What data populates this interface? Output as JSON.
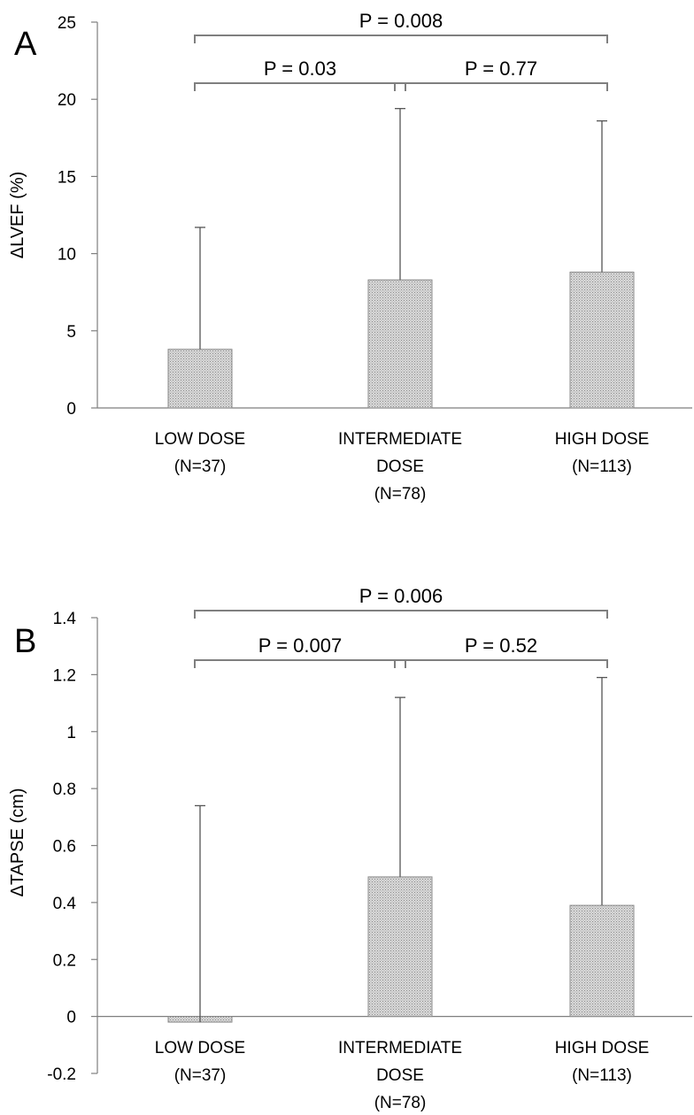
{
  "chart_data": [
    {
      "type": "bar",
      "panel_label": "A",
      "ylabel": "ΔLVEF (%)",
      "ylim": [
        0,
        25
      ],
      "yticks": [
        0,
        5,
        10,
        15,
        20,
        25
      ],
      "yticklabels": [
        "0",
        "5",
        "10",
        "15",
        "20",
        "25"
      ],
      "categories": [
        [
          "LOW DOSE",
          "(N=37)"
        ],
        [
          "INTERMEDIATE",
          "DOSE",
          "(N=78)"
        ],
        [
          "HIGH DOSE",
          "(N=113)"
        ]
      ],
      "values": [
        3.8,
        8.3,
        8.8
      ],
      "error_upper": [
        11.7,
        19.4,
        18.6
      ],
      "comparisons": [
        {
          "from": 0,
          "to": 2,
          "label": "P = 0.008",
          "level": 2
        },
        {
          "from": 0,
          "to": 1,
          "label": "P = 0.03",
          "level": 1
        },
        {
          "from": 1,
          "to": 2,
          "label": "P = 0.77",
          "level": 1
        }
      ]
    },
    {
      "type": "bar",
      "panel_label": "B",
      "ylabel": "ΔTAPSE (cm)",
      "ylim": [
        -0.2,
        1.4
      ],
      "yticks": [
        -0.2,
        0,
        0.2,
        0.4,
        0.6,
        0.8,
        1,
        1.2,
        1.4
      ],
      "yticklabels": [
        "-0.2",
        "0",
        "0.2",
        "0.4",
        "0.6",
        "0.8",
        "1",
        "1.2",
        "1.4"
      ],
      "categories": [
        [
          "LOW DOSE",
          "(N=37)"
        ],
        [
          "INTERMEDIATE",
          "DOSE",
          "(N=78)"
        ],
        [
          "HIGH DOSE",
          "(N=113)"
        ]
      ],
      "values": [
        -0.02,
        0.49,
        0.39
      ],
      "error_upper": [
        0.74,
        1.12,
        1.19
      ],
      "comparisons": [
        {
          "from": 0,
          "to": 2,
          "label": "P = 0.006",
          "level": 2
        },
        {
          "from": 0,
          "to": 1,
          "label": "P = 0.007",
          "level": 1
        },
        {
          "from": 1,
          "to": 2,
          "label": "P = 0.52",
          "level": 1
        }
      ]
    }
  ]
}
